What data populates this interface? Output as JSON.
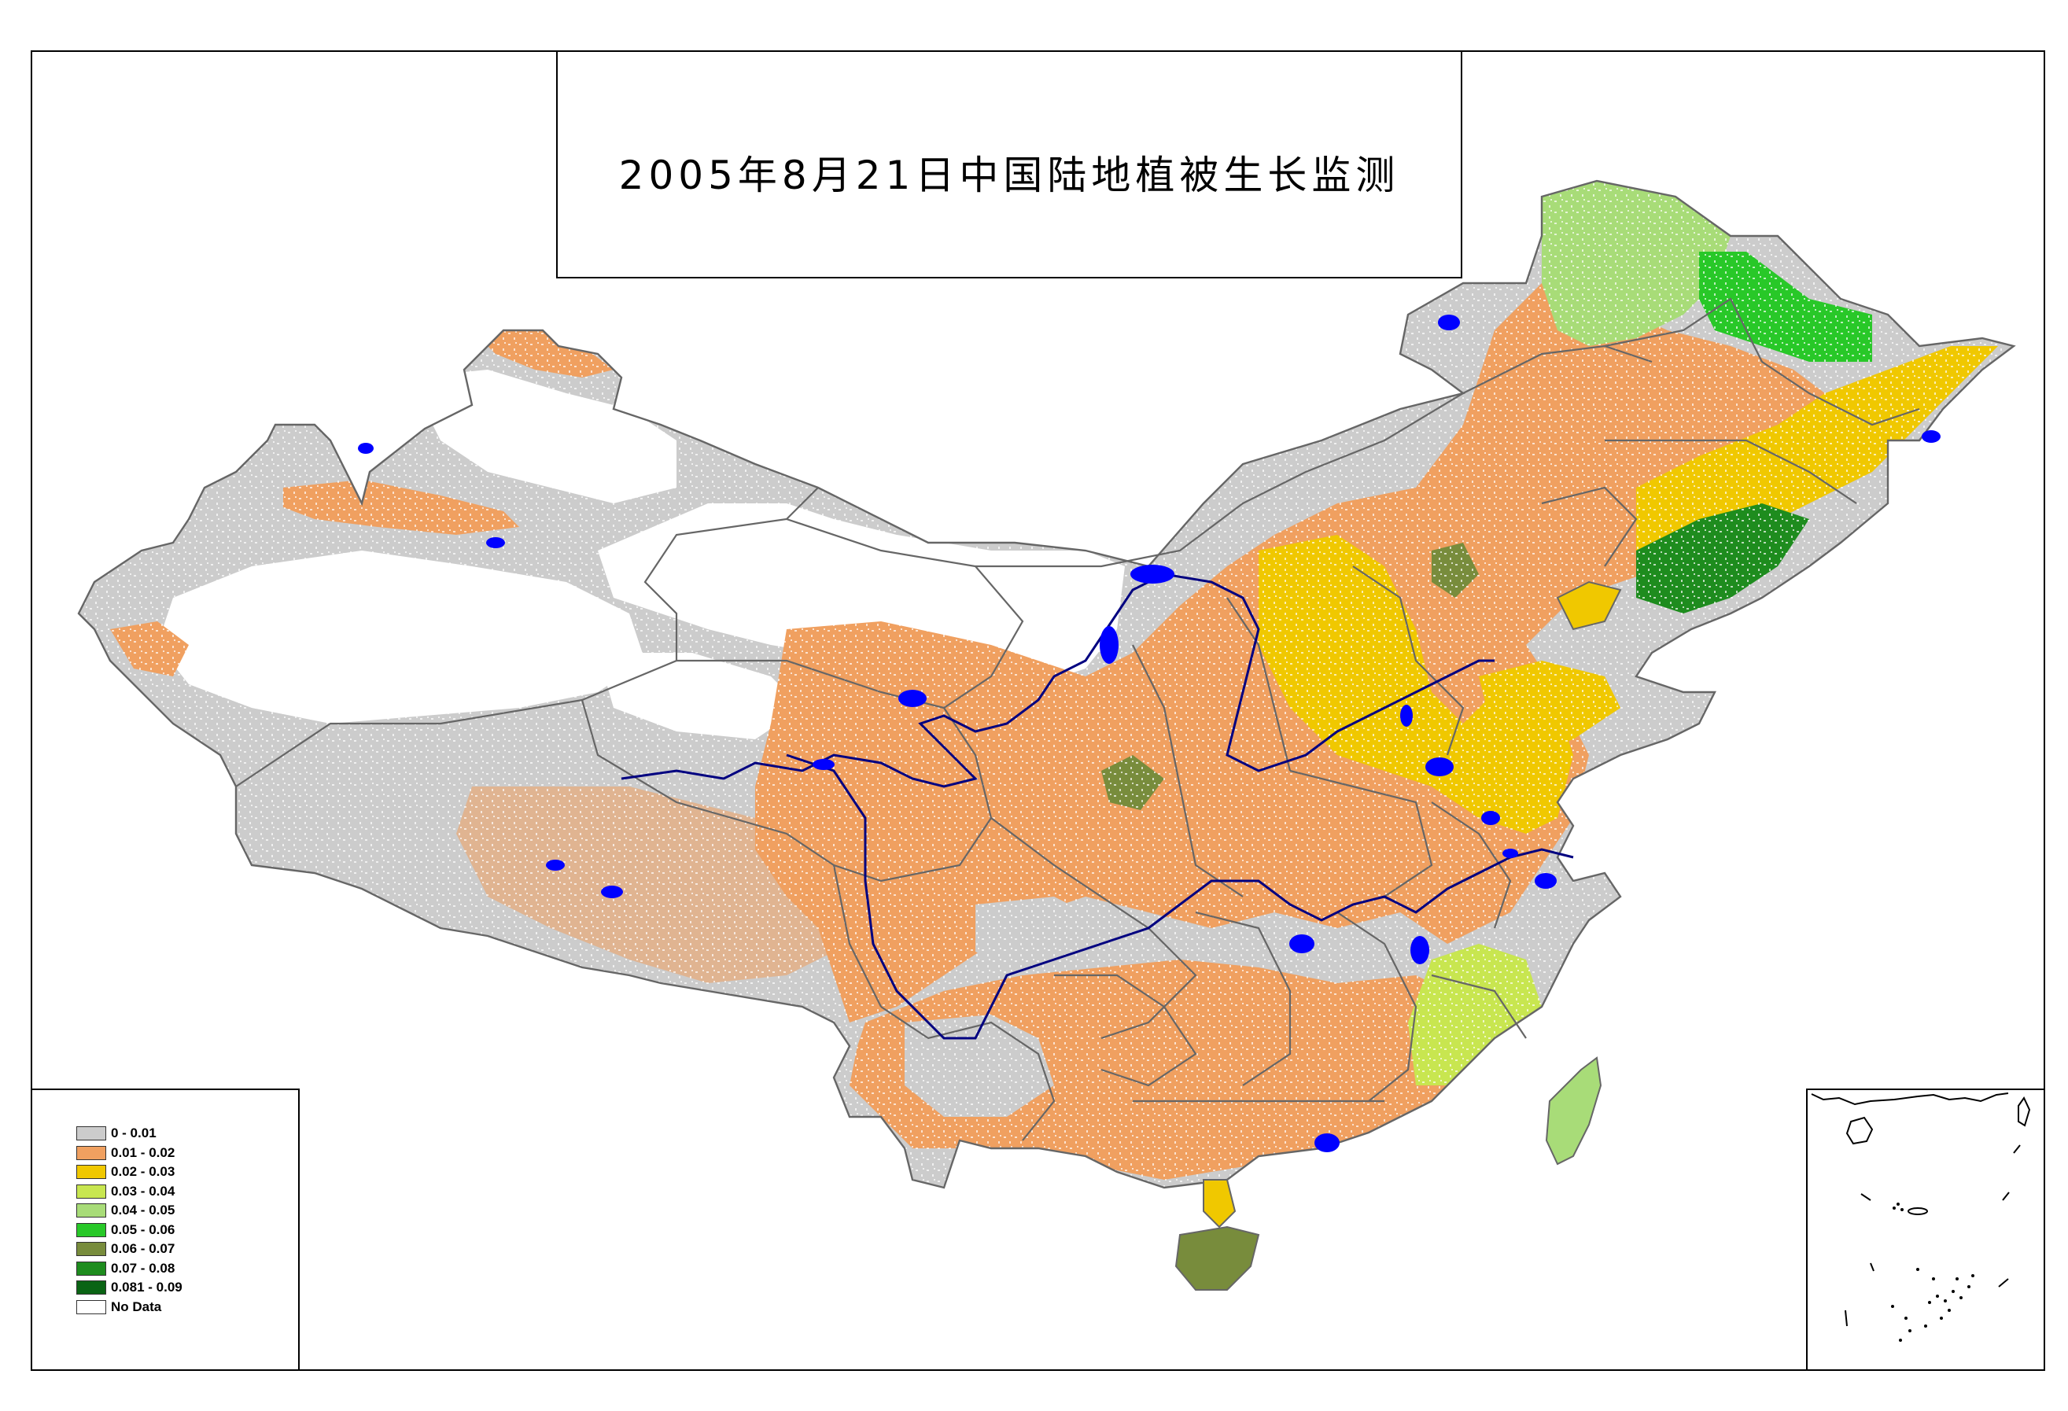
{
  "title": "2005年8月21日中国陆地植被生长监测",
  "legend": {
    "items": [
      {
        "label": "0 - 0.01",
        "color": "#cccccc"
      },
      {
        "label": "0.01 - 0.02",
        "color": "#f0a060"
      },
      {
        "label": "0.02 - 0.03",
        "color": "#f0c800"
      },
      {
        "label": "0.03 - 0.04",
        "color": "#c8e650"
      },
      {
        "label": "0.04 - 0.05",
        "color": "#a8dc78"
      },
      {
        "label": "0.05 - 0.06",
        "color": "#28c828"
      },
      {
        "label": "0.06 - 0.07",
        "color": "#788c3c"
      },
      {
        "label": "0.07 - 0.08",
        "color": "#1e8c1e"
      },
      {
        "label": "0.081 - 0.09",
        "color": "#0a6414"
      },
      {
        "label": "No Data",
        "color": "#ffffff"
      }
    ]
  },
  "colors": {
    "water": "#0000ff",
    "river": "#000080",
    "boundary": "#666666"
  }
}
